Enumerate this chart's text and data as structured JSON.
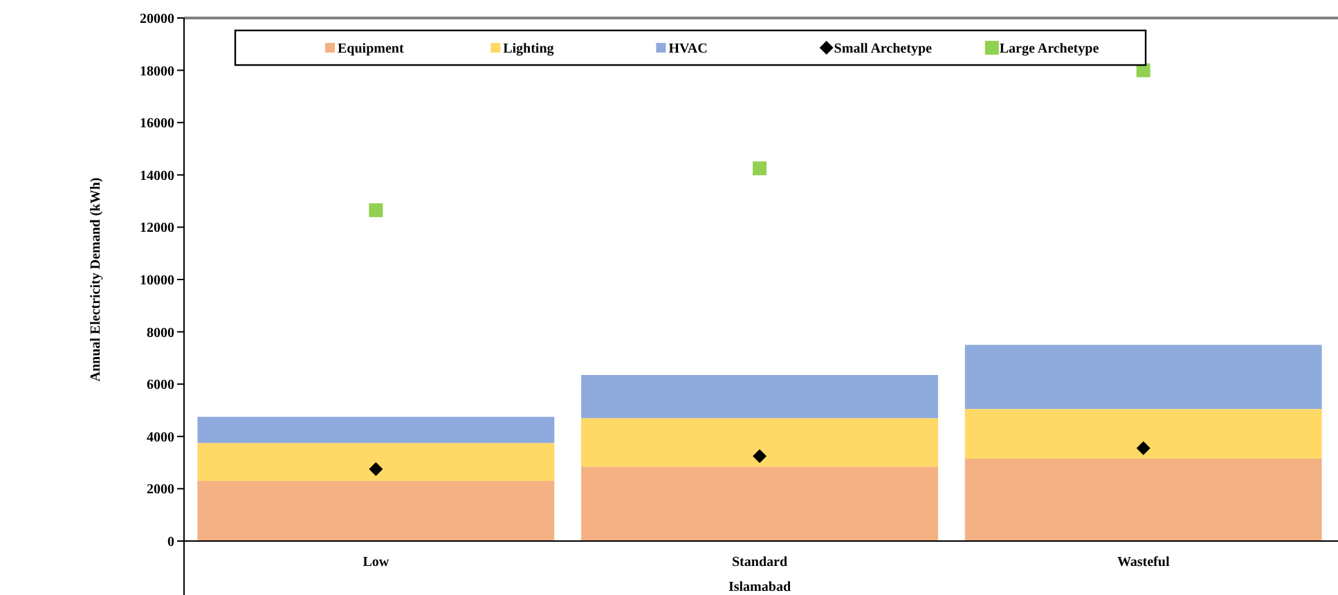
{
  "chart_data": {
    "type": "bar",
    "stacked": true,
    "xlabel": "Islamabad",
    "ylabel": "Annual Electricity Demand (kWh)",
    "categories": [
      "Low",
      "Standard",
      "Wasteful"
    ],
    "series": [
      {
        "name": "Equipment",
        "color": "#f4b183",
        "values": [
          2300,
          2850,
          3150
        ]
      },
      {
        "name": "Lighting",
        "color": "#ffd966",
        "values": [
          1450,
          1850,
          1900
        ]
      },
      {
        "name": "HVAC",
        "color": "#8faadc",
        "values": [
          1000,
          1650,
          2450
        ]
      },
      {
        "name": "Small Archetype",
        "type": "scatter",
        "marker": "diamond",
        "color": "#000000",
        "x": [
          "Low",
          "Standard",
          "Wasteful"
        ],
        "values": [
          2750,
          3250,
          3550
        ]
      },
      {
        "name": "Large Archetype",
        "type": "scatter",
        "marker": "square",
        "color": "#92d050",
        "x": [
          "Low",
          "Standard",
          "Wasteful"
        ],
        "values": [
          12650,
          14250,
          18000
        ]
      }
    ],
    "ylim": [
      0,
      20000
    ],
    "yticks": [
      0,
      2000,
      4000,
      6000,
      8000,
      10000,
      12000,
      14000,
      16000,
      18000,
      20000
    ],
    "grid": false,
    "legend": "top"
  }
}
